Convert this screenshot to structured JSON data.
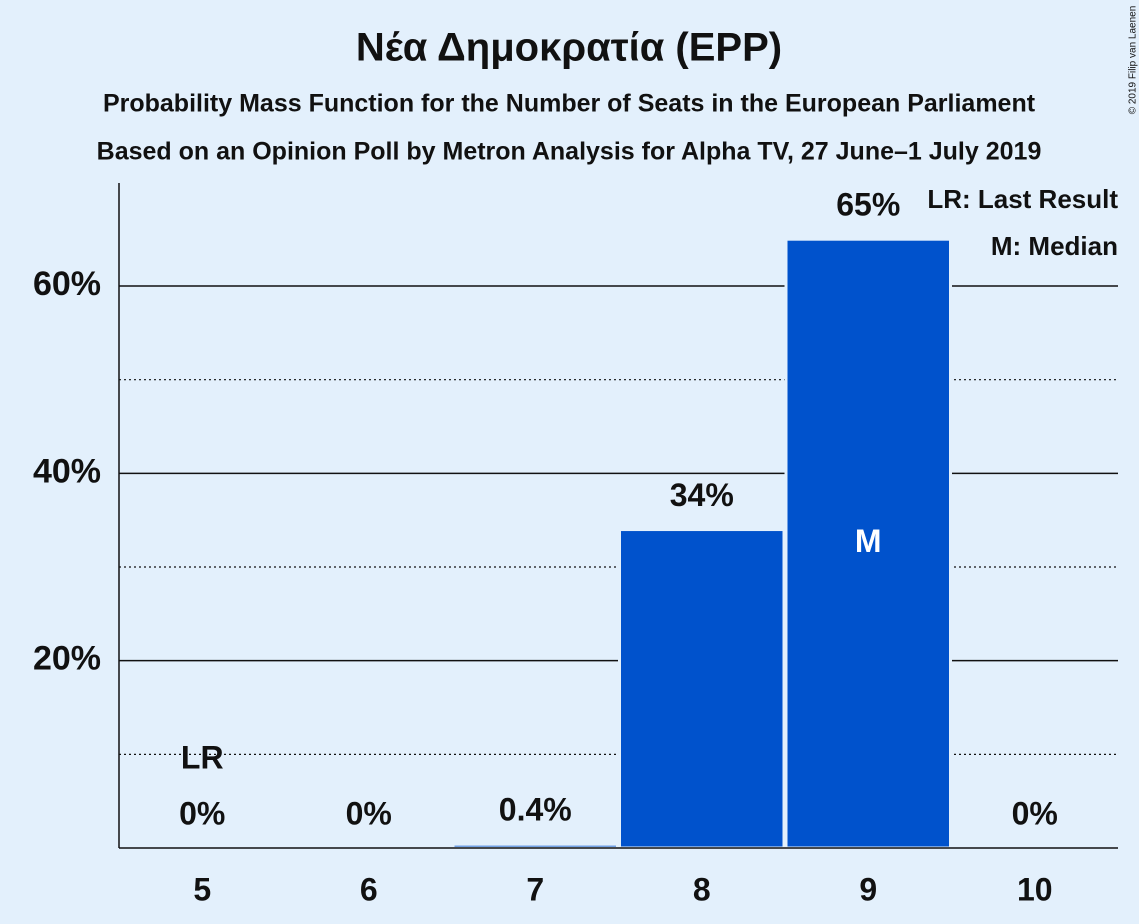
{
  "chart_data": {
    "type": "bar",
    "title": "Νέα Δημοκρατία (EPP)",
    "subtitles": [
      "Probability Mass Function for the Number of Seats in the European Parliament",
      "Based on an Opinion Poll by Metron Analysis for Alpha TV, 27 June–1 July 2019"
    ],
    "categories": [
      "5",
      "6",
      "7",
      "8",
      "9",
      "10"
    ],
    "values": [
      0,
      0,
      0.4,
      34,
      65,
      0
    ],
    "value_labels": [
      "0%",
      "0%",
      "0.4%",
      "34%",
      "65%",
      "0%"
    ],
    "color": "#0052cc",
    "ylim": [
      0,
      71
    ],
    "yticks": [
      {
        "value": 20,
        "label": "20%"
      },
      {
        "value": 40,
        "label": "40%"
      },
      {
        "value": 60,
        "label": "60%"
      }
    ],
    "minor_yticks": [
      10,
      30,
      50
    ],
    "grid": true,
    "last_result": {
      "category": "5",
      "label": "LR"
    },
    "median": {
      "category": "9",
      "label": "M"
    },
    "legend": [
      "LR: Last Result",
      "M: Median"
    ],
    "legend_position": "upper right",
    "copyright": "© 2019 Filip van Laenen"
  }
}
